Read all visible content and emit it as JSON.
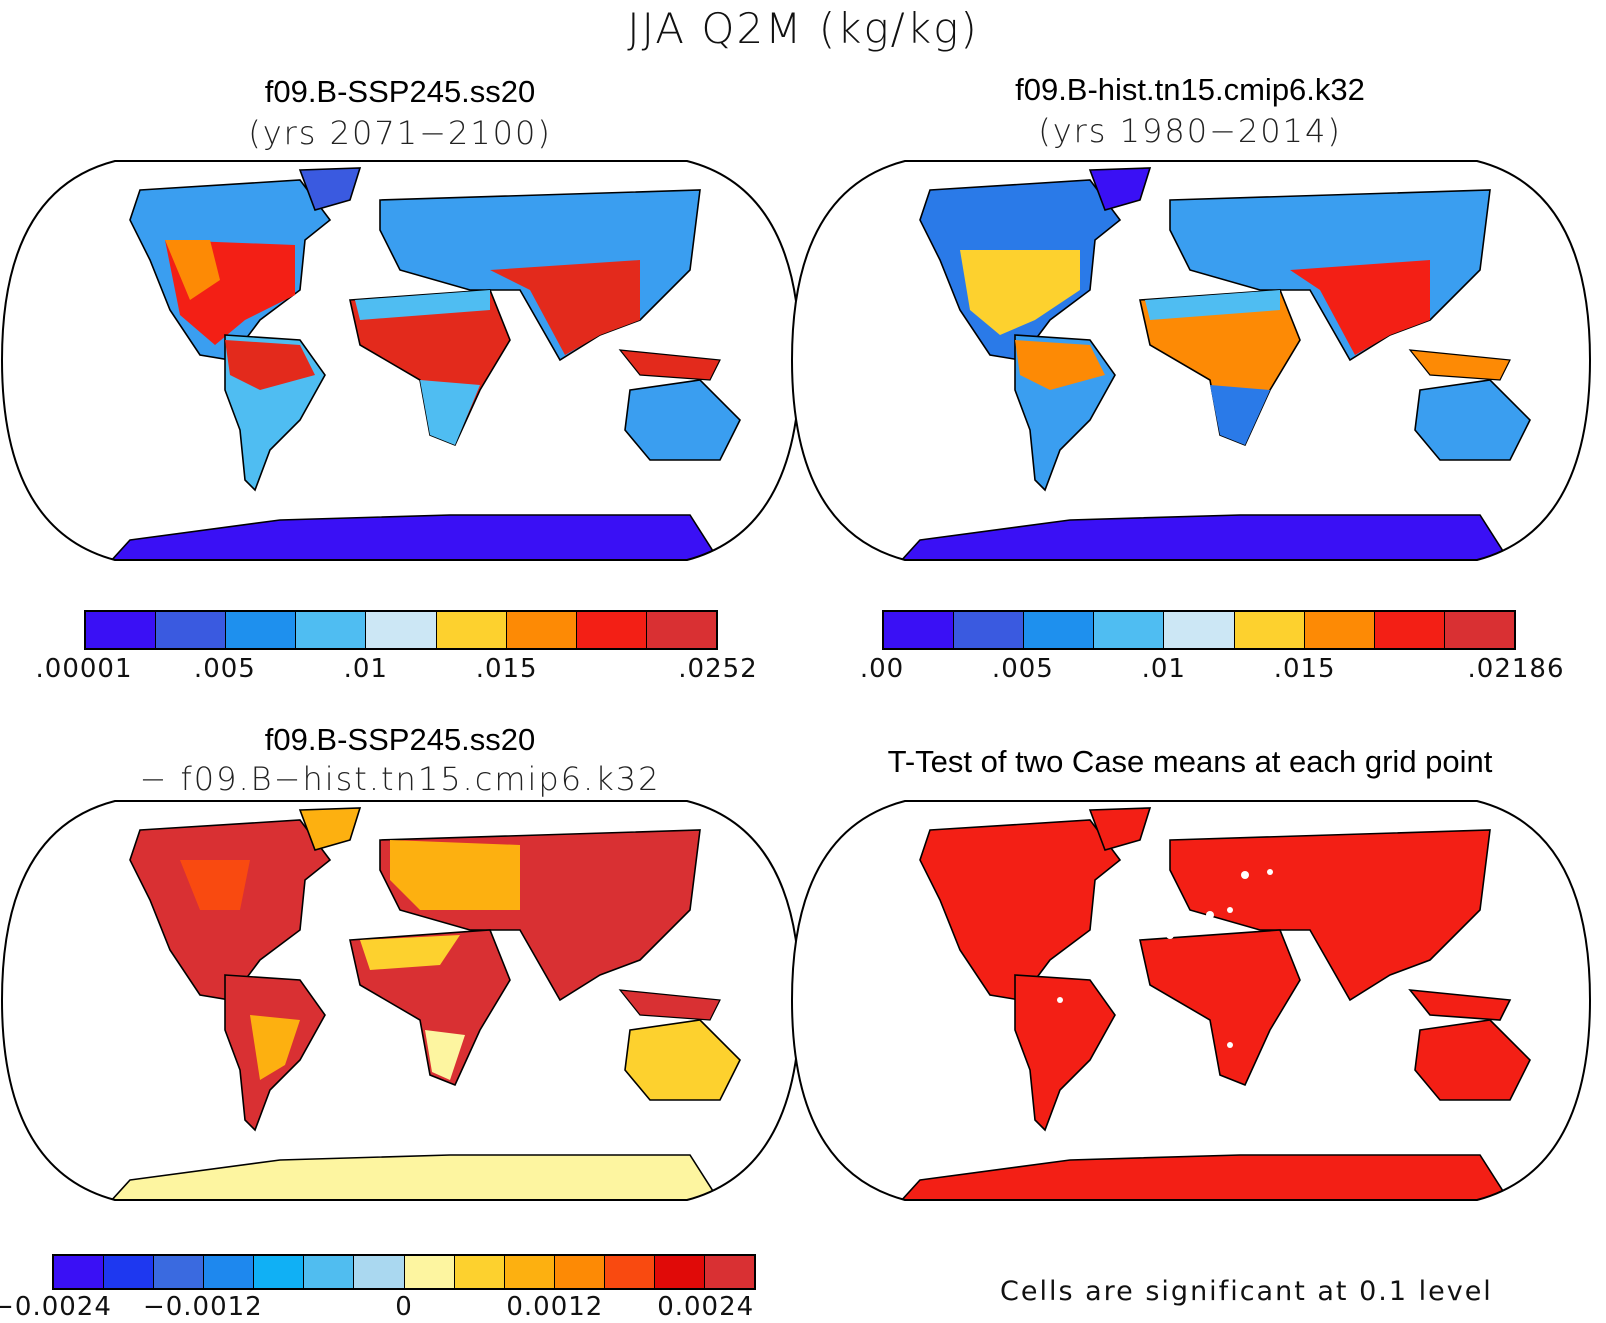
{
  "figure": {
    "title": "JJA Q2M (kg/kg)"
  },
  "panels": [
    {
      "title": "f09.B-SSP245.ss20",
      "subtitle": "(yrs 2071−2100)"
    },
    {
      "title": "f09.B-hist.tn15.cmip6.k32",
      "subtitle": "(yrs 1980−2014)"
    },
    {
      "title": "f09.B-SSP245.ss20",
      "subtitle": "− f09.B−hist.tn15.cmip6.k32"
    },
    {
      "title": "T-Test of two Case means at each grid point",
      "subtitle": ""
    }
  ],
  "colorbars": [
    {
      "colors": [
        "#3a10f5",
        "#3a5ae0",
        "#1e90ee",
        "#4fbdf2",
        "#cce7f5",
        "#fdd12e",
        "#fd8a05",
        "#f31f15",
        "#d93033"
      ],
      "tick_labels": [
        ".00001",
        ".005",
        ".01",
        ".015",
        ".0252"
      ],
      "tick_positions": [
        0,
        2,
        4,
        6,
        9
      ]
    },
    {
      "colors": [
        "#3a10f5",
        "#3a5ae0",
        "#1e90ee",
        "#4fbdf2",
        "#cce7f5",
        "#fdd12e",
        "#fd8a05",
        "#f31f15",
        "#d93033"
      ],
      "tick_labels": [
        ".00",
        ".005",
        ".01",
        ".015",
        ".02186"
      ],
      "tick_positions": [
        0,
        2,
        4,
        6,
        9
      ]
    },
    {
      "colors": [
        "#3a10f5",
        "#1e38f0",
        "#3a6ae0",
        "#1e88ee",
        "#10b0f5",
        "#50bdf0",
        "#aad8f0",
        "#fdf5a0",
        "#fdd12e",
        "#fdb010",
        "#fd8a05",
        "#f94a10",
        "#e00a08",
        "#d93033"
      ],
      "tick_labels": [
        "−0.0024",
        "−0.0012",
        "0",
        "0.0012",
        "0.0024"
      ],
      "tick_positions": [
        0,
        3,
        7,
        10,
        13
      ]
    }
  ],
  "significance_note": "Cells are significant at 0.1 level",
  "map_colors": {
    "ocean": "#ffffff",
    "land_outline": "#000000",
    "ssp_tropics": "#e32a1c",
    "hist_tropics": "#fd8a05",
    "diff_land": "#d93033",
    "diff_antarctica": "#fdf5a0",
    "ttest_sig": "#f31f15"
  }
}
